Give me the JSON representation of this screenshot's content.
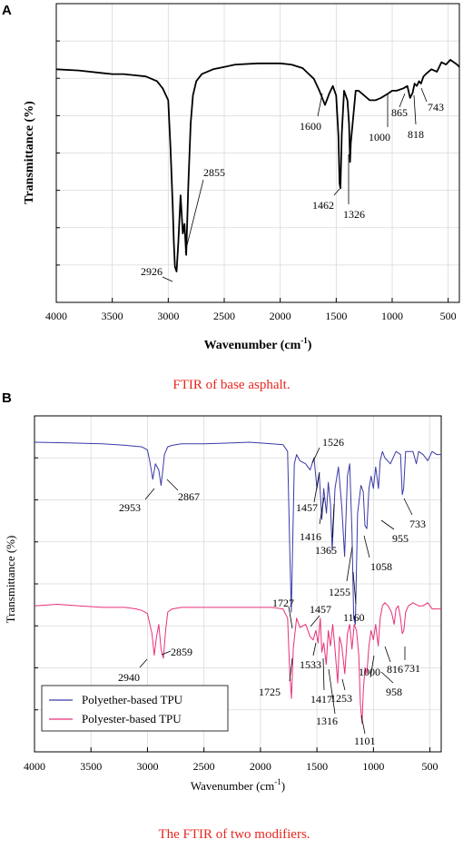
{
  "chart_data": [
    {
      "type": "line",
      "panel": "A",
      "caption": "FTIR of base asphalt.",
      "xlabel_main": "Wavenumber (cm",
      "xlabel_sup": "-1",
      "xlabel_tail": ")",
      "ylabel": "Transmittance (%)",
      "xlim": [
        4000,
        400
      ],
      "x_ticks": [
        4000,
        3500,
        3000,
        2500,
        2000,
        1500,
        1000,
        500
      ],
      "grid": true,
      "series": [
        {
          "color": "#000000",
          "x": [
            4000,
            3800,
            3600,
            3500,
            3400,
            3300,
            3200,
            3100,
            3050,
            3000,
            2980,
            2960,
            2950,
            2940,
            2926,
            2910,
            2890,
            2870,
            2855,
            2840,
            2820,
            2800,
            2780,
            2750,
            2700,
            2600,
            2500,
            2400,
            2200,
            2000,
            1900,
            1800,
            1700,
            1650,
            1600,
            1560,
            1530,
            1500,
            1480,
            1470,
            1462,
            1450,
            1430,
            1400,
            1385,
            1376,
            1370,
            1326,
            1300,
            1250,
            1200,
            1150,
            1100,
            1030,
            1000,
            960,
            900,
            865,
            840,
            818,
            800,
            780,
            760,
            743,
            720,
            700,
            650,
            600,
            560,
            520,
            480,
            450,
            420,
            400
          ],
          "y": [
            93,
            92.5,
            91.5,
            91,
            91,
            90.5,
            90,
            88,
            85,
            80,
            60,
            35,
            20,
            10,
            8,
            20,
            40,
            24,
            28,
            15,
            45,
            70,
            82,
            88,
            91,
            93,
            94,
            95,
            95.5,
            95.5,
            95,
            93.5,
            89,
            84,
            78,
            83,
            86,
            82,
            65,
            45,
            43,
            66,
            84,
            80,
            70,
            54,
            62,
            84,
            84,
            82,
            80,
            80,
            81,
            83,
            84,
            84,
            85,
            86,
            81,
            83,
            87,
            86,
            88,
            87,
            90,
            91,
            93,
            92,
            96,
            95,
            97,
            96,
            95,
            94
          ]
        }
      ],
      "annotations": [
        "2926",
        "2855",
        "1600",
        "1462",
        "1326",
        "1000",
        "865",
        "818",
        "743"
      ]
    },
    {
      "type": "line",
      "panel": "B",
      "caption": "The FTIR of two modifiers.",
      "xlabel_main": "Wavenumber (cm",
      "xlabel_sup": "-1",
      "xlabel_tail": ")",
      "ylabel": "Transmittance (%)",
      "xlim": [
        4000,
        400
      ],
      "x_ticks": [
        4000,
        3500,
        3000,
        2500,
        2000,
        1500,
        1000,
        500
      ],
      "grid": true,
      "legend_position": "bottom-left",
      "series": [
        {
          "name": "Polyether-based TPU",
          "color": "#3a3aa8",
          "x": [
            4000,
            3700,
            3400,
            3200,
            3050,
            3000,
            2980,
            2953,
            2930,
            2900,
            2880,
            2867,
            2850,
            2820,
            2780,
            2700,
            2500,
            2300,
            2100,
            1900,
            1800,
            1760,
            1740,
            1727,
            1715,
            1700,
            1680,
            1650,
            1600,
            1560,
            1526,
            1500,
            1480,
            1457,
            1440,
            1416,
            1400,
            1380,
            1365,
            1340,
            1310,
            1280,
            1255,
            1230,
            1210,
            1190,
            1175,
            1160,
            1140,
            1110,
            1090,
            1075,
            1058,
            1040,
            1020,
            1000,
            980,
            955,
            940,
            920,
            900,
            850,
            800,
            760,
            745,
            733,
            715,
            690,
            650,
            620,
            600,
            560,
            520,
            480,
            440,
            400
          ],
          "y": [
            95,
            94.8,
            94.5,
            94,
            93.5,
            92.5,
            89,
            83,
            88,
            86,
            81,
            85,
            91,
            93.5,
            94,
            94.5,
            94.5,
            94.7,
            95,
            94.5,
            94.2,
            92,
            60,
            40,
            62,
            88,
            91,
            89,
            88,
            86,
            90,
            80,
            85,
            70,
            80,
            72,
            82,
            75,
            60,
            80,
            87,
            74,
            58,
            84,
            88,
            66,
            38,
            36,
            72,
            81,
            79,
            68,
            67,
            80,
            84,
            80,
            87,
            80,
            89,
            92,
            90,
            88,
            92,
            91,
            78,
            80,
            92,
            92,
            92,
            88,
            92,
            91,
            89,
            92,
            91,
            91
          ]
        },
        {
          "name": "Polyester-based TPU",
          "color": "#e8307a",
          "x": [
            4000,
            3800,
            3600,
            3400,
            3200,
            3100,
            3050,
            3000,
            2960,
            2940,
            2920,
            2900,
            2880,
            2859,
            2840,
            2820,
            2780,
            2700,
            2500,
            2300,
            2100,
            1900,
            1800,
            1760,
            1740,
            1725,
            1710,
            1695,
            1680,
            1650,
            1600,
            1560,
            1533,
            1510,
            1490,
            1470,
            1457,
            1440,
            1417,
            1400,
            1380,
            1360,
            1340,
            1316,
            1300,
            1280,
            1253,
            1230,
            1210,
            1190,
            1170,
            1150,
            1130,
            1115,
            1101,
            1090,
            1075,
            1058,
            1040,
            1020,
            1000,
            980,
            958,
            940,
            920,
            900,
            870,
            840,
            816,
            800,
            780,
            760,
            745,
            731,
            715,
            690,
            650,
            600,
            560,
            520,
            480,
            440,
            400
          ],
          "y": [
            42,
            42.5,
            42,
            41.5,
            41.5,
            41,
            40.5,
            39.5,
            33,
            26,
            32,
            36,
            28,
            25,
            34,
            40,
            41,
            41.5,
            41.5,
            41.5,
            41.5,
            41.5,
            41,
            38,
            20,
            12,
            28,
            33,
            38,
            35,
            36,
            32,
            31,
            34,
            30,
            38,
            27,
            30,
            23,
            34,
            29,
            36,
            28,
            17,
            32,
            29,
            20,
            33,
            36,
            28,
            36,
            34,
            26,
            10,
            4,
            14,
            22,
            20,
            29,
            34,
            31,
            36,
            29,
            38,
            42,
            43,
            42,
            40,
            36,
            41,
            42,
            38,
            33,
            34,
            40,
            42,
            43,
            42,
            42,
            43,
            41,
            41,
            41
          ]
        }
      ],
      "annotations": [
        "1526",
        "2953",
        "2867",
        "1457",
        "1416",
        "1365",
        "955",
        "733",
        "1058",
        "1255",
        "1160",
        "1727",
        "1457",
        "1533",
        "2859",
        "2940",
        "1000",
        "816",
        "731",
        "958",
        "1725",
        "1417",
        "1253",
        "1316",
        "1101"
      ]
    }
  ]
}
